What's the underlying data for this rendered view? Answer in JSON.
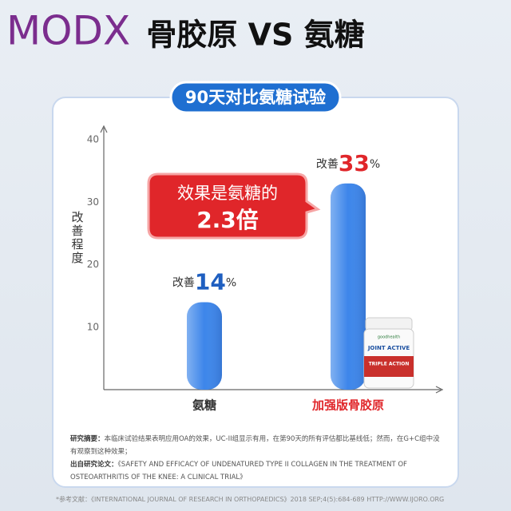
{
  "watermark": "MODX",
  "chart_data": {
    "type": "bar",
    "title": "骨胶原 VS 氨糖",
    "subtitle": "90天对比氨糖试验",
    "y_label": "改善程度",
    "categories": [
      "氨糖",
      "加强版骨胶原"
    ],
    "values": [
      14,
      33
    ],
    "value_labels": [
      "改善14%",
      "改善33%"
    ],
    "color": "#3d86ea",
    "ylim": [
      0,
      40
    ],
    "yticks": [
      10,
      20,
      30,
      40
    ],
    "grid": false,
    "annotation": [
      "效果是氨糖的",
      "2.3倍"
    ]
  },
  "product": {
    "brand": "goodhealth",
    "name": "JOINT ACTIVE",
    "badge": "TRIPLE ACTION"
  },
  "notes": {
    "summary_label": "研究摘要：",
    "summary": "本临床试验结果表明应用OA的效果，UC-II组显示有用，在第90天的所有评估都比基线低；然而，在G+C组中没有观察到这种效果；",
    "source_label": "出自研究论文：",
    "source": "《SAFETY AND EFFICACY OF UNDENATURED TYPE II COLLAGEN IN THE TREATMENT OF OSTEOARTHRITIS OF THE KNEE: A CLINICAL TRIAL》",
    "reference": "*参考文献：《INTERNATIONAL JOURNAL OF RESEARCH IN ORTHOPAEDICS》2018 SEP;4(5):684-689 HTTP://WWW.IJORO.ORG"
  }
}
